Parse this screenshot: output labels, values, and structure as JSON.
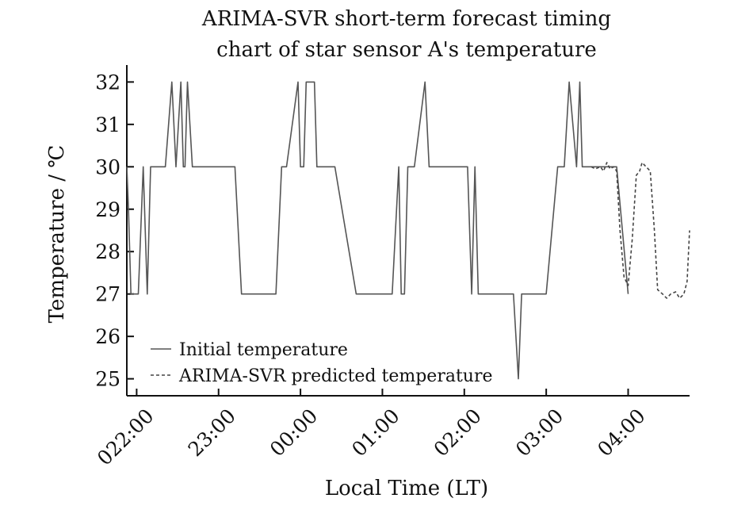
{
  "chart_data": {
    "type": "line",
    "title_lines": [
      "ARIMA-SVR short-term forecast timing",
      "chart of star sensor A's temperature"
    ],
    "xlabel": "Local Time (LT)",
    "ylabel": "Temperature / ℃",
    "ylim": [
      24.6,
      32.4
    ],
    "xlim": [
      -0.12,
      6.75
    ],
    "y_ticks": [
      25,
      26,
      27,
      28,
      29,
      30,
      31,
      32
    ],
    "x_ticks": [
      {
        "value": 0,
        "label": "022:00"
      },
      {
        "value": 1,
        "label": "23:00"
      },
      {
        "value": 2,
        "label": "00:00"
      },
      {
        "value": 3,
        "label": "01:00"
      },
      {
        "value": 4,
        "label": "02:00"
      },
      {
        "value": 5,
        "label": "03:00"
      },
      {
        "value": 6,
        "label": "04:00"
      }
    ],
    "grid": false,
    "legend_position": "bottom-left",
    "series": [
      {
        "name": "Initial temperature",
        "style": "solid",
        "color": "#555555",
        "x": [
          -0.12,
          -0.1,
          -0.07,
          0.02,
          0.08,
          0.13,
          0.17,
          0.23,
          0.35,
          0.43,
          0.48,
          0.54,
          0.57,
          0.59,
          0.62,
          0.68,
          0.7,
          0.73,
          0.75,
          0.77,
          0.8,
          0.84,
          0.87,
          1.2,
          1.28,
          1.7,
          1.77,
          1.83,
          1.97,
          2.0,
          2.04,
          2.07,
          2.12,
          2.17,
          2.2,
          2.29,
          2.36,
          2.42,
          2.68,
          2.75,
          3.12,
          3.2,
          3.23,
          3.27,
          3.31,
          3.35,
          3.39,
          3.52,
          3.57,
          3.61,
          3.67,
          4.04,
          4.09,
          4.13,
          4.17,
          4.21,
          4.26,
          4.6,
          4.66,
          4.7,
          4.75,
          5.0,
          5.14,
          5.18,
          5.22,
          5.28,
          5.37,
          5.41,
          5.44,
          5.51,
          5.76,
          5.8,
          5.86,
          6.0
        ],
        "y": [
          30,
          29,
          27,
          27,
          30,
          27,
          30,
          30,
          30,
          32,
          30,
          32,
          30,
          30,
          32,
          30,
          30,
          30,
          30,
          30,
          30,
          30,
          30,
          30,
          27,
          27,
          30,
          30,
          32,
          30,
          30,
          32,
          32,
          32,
          30,
          30,
          30,
          30,
          27,
          27,
          27,
          30,
          27,
          27,
          30,
          30,
          30,
          32,
          30,
          30,
          30,
          30,
          27,
          30,
          27,
          27,
          27,
          27,
          25,
          27,
          27,
          27,
          30,
          30,
          30,
          32,
          30,
          32,
          30,
          30,
          30,
          30,
          30,
          27
        ]
      },
      {
        "name": "ARIMA-SVR predicted temperature",
        "style": "dashed",
        "color": "#444444",
        "x": [
          5.55,
          5.6,
          5.66,
          5.7,
          5.74,
          5.78,
          5.82,
          5.86,
          5.9,
          5.95,
          6.0,
          6.05,
          6.1,
          6.14,
          6.17,
          6.22,
          6.27,
          6.32,
          6.36,
          6.42,
          6.47,
          6.52,
          6.58,
          6.63,
          6.68,
          6.72,
          6.75
        ],
        "y": [
          30,
          29.95,
          30,
          29.9,
          30.1,
          29.95,
          30,
          29.9,
          28.5,
          27.4,
          27.2,
          28.3,
          29.8,
          29.9,
          30.1,
          30,
          29.9,
          28.5,
          27.1,
          27,
          26.9,
          27,
          27.05,
          26.9,
          27,
          27.3,
          28.5
        ]
      }
    ]
  }
}
